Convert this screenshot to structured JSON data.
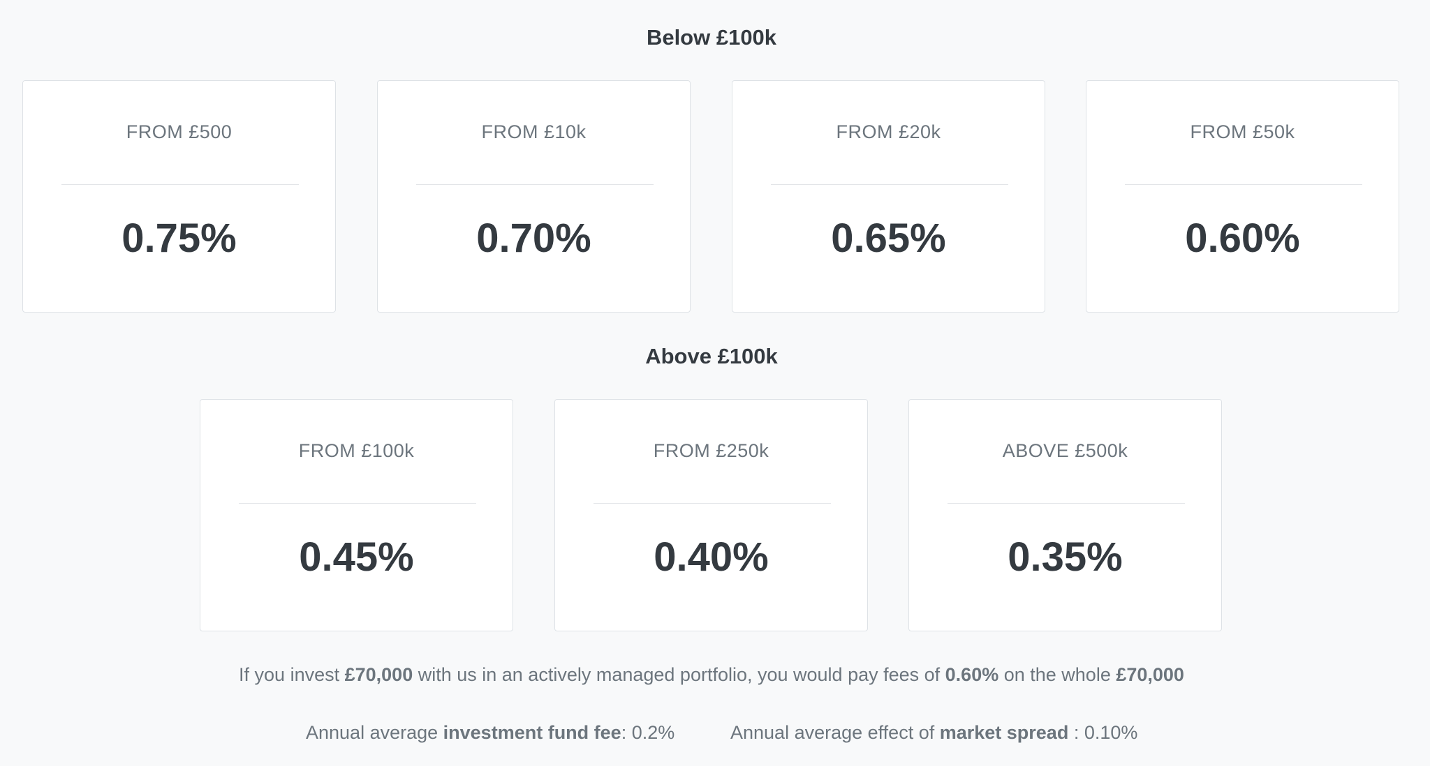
{
  "sections": {
    "below": {
      "title": "Below £100k",
      "tiers": [
        {
          "label": "FROM £500",
          "rate": "0.75%"
        },
        {
          "label": "FROM £10k",
          "rate": "0.70%"
        },
        {
          "label": "FROM £20k",
          "rate": "0.65%"
        },
        {
          "label": "FROM £50k",
          "rate": "0.60%"
        }
      ]
    },
    "above": {
      "title": "Above £100k",
      "tiers": [
        {
          "label": "FROM £100k",
          "rate": "0.45%"
        },
        {
          "label": "FROM £250k",
          "rate": "0.40%"
        },
        {
          "label": "ABOVE £500k",
          "rate": "0.35%"
        }
      ]
    }
  },
  "example": {
    "prefix": "If you invest ",
    "amount": "£70,000",
    "middle": " with us in an actively managed portfolio, you would pay fees of ",
    "rate": "0.60%",
    "suffix": " on the whole ",
    "amount_repeat": "£70,000"
  },
  "fees": {
    "fund": {
      "prefix": "Annual average ",
      "term": "investment fund fee",
      "suffix": ": 0.2%"
    },
    "spread": {
      "prefix": "Annual average effect of ",
      "term": "market spread",
      "suffix": " : 0.10%"
    }
  }
}
